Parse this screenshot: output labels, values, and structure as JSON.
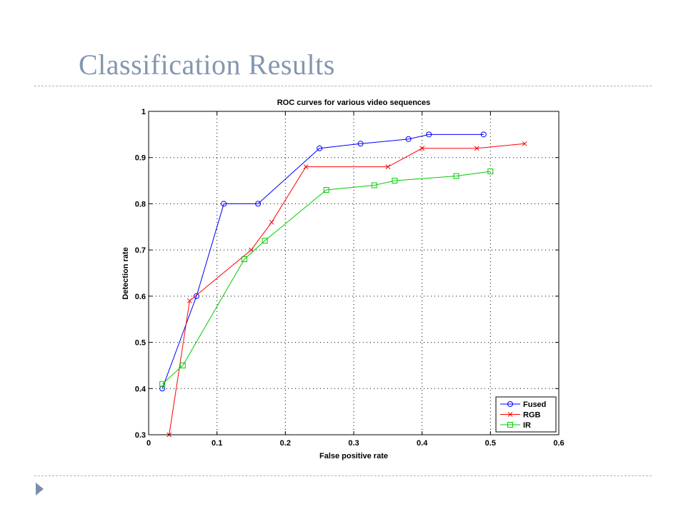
{
  "slide": {
    "title": "Classification Results",
    "nav_icon": "triangle-right-icon"
  },
  "chart_data": {
    "type": "line",
    "title": "ROC curves for various video sequences",
    "xlabel": "False positive rate",
    "ylabel": "Detection rate",
    "xlim": [
      0,
      0.6
    ],
    "ylim": [
      0.3,
      1
    ],
    "xticks": [
      0,
      0.1,
      0.2,
      0.3,
      0.4,
      0.5,
      0.6
    ],
    "xtick_labels": [
      "0",
      "0.1",
      "0.2",
      "0.3",
      "0.4",
      "0.5",
      "0.6"
    ],
    "yticks": [
      0.3,
      0.4,
      0.5,
      0.6,
      0.7,
      0.8,
      0.9,
      1
    ],
    "ytick_labels": [
      "0.3",
      "0.4",
      "0.5",
      "0.6",
      "0.7",
      "0.8",
      "0.9",
      "1"
    ],
    "grid": true,
    "legend_position": "bottom-right",
    "series": [
      {
        "name": "Fused",
        "color": "#0000ff",
        "marker": "circle",
        "x": [
          0.02,
          0.07,
          0.11,
          0.16,
          0.25,
          0.31,
          0.38,
          0.41,
          0.49
        ],
        "y": [
          0.4,
          0.6,
          0.8,
          0.8,
          0.92,
          0.93,
          0.94,
          0.95,
          0.95
        ]
      },
      {
        "name": "RGB",
        "color": "#ff0000",
        "marker": "x",
        "x": [
          0.03,
          0.06,
          0.15,
          0.18,
          0.23,
          0.35,
          0.4,
          0.48,
          0.55
        ],
        "y": [
          0.3,
          0.59,
          0.7,
          0.76,
          0.88,
          0.88,
          0.92,
          0.92,
          0.93
        ]
      },
      {
        "name": "IR",
        "color": "#00cc00",
        "marker": "square",
        "x": [
          0.02,
          0.05,
          0.14,
          0.17,
          0.26,
          0.33,
          0.36,
          0.45,
          0.5
        ],
        "y": [
          0.41,
          0.45,
          0.68,
          0.72,
          0.83,
          0.84,
          0.85,
          0.86,
          0.87
        ]
      }
    ]
  }
}
